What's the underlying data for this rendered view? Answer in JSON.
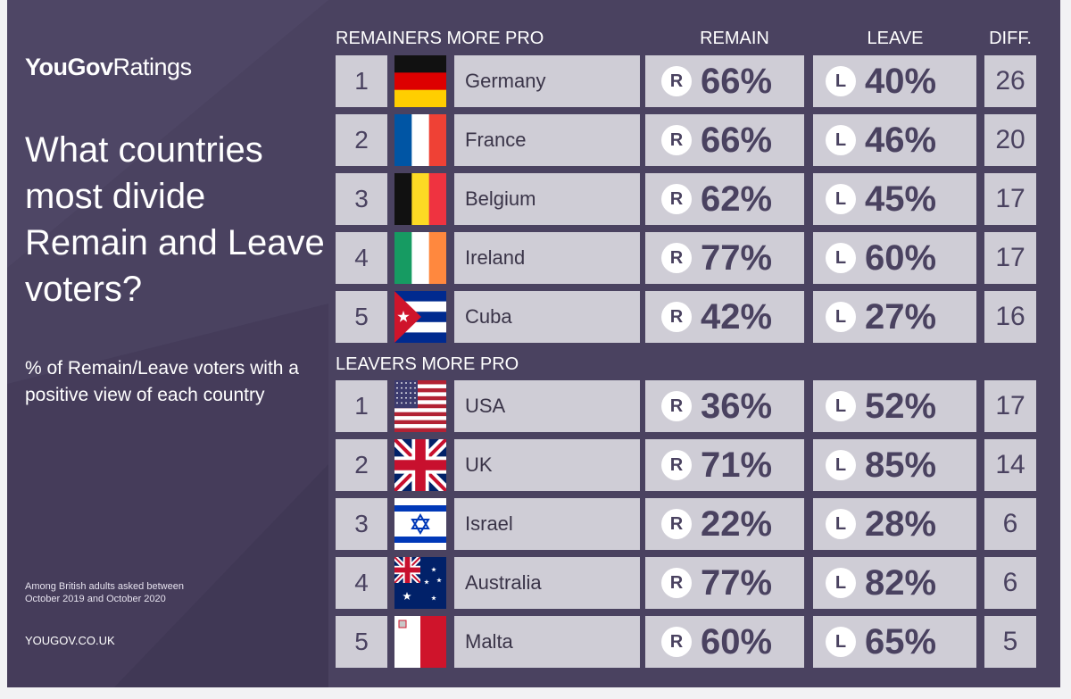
{
  "brand": {
    "bold": "YouGov",
    "light": "Ratings"
  },
  "title": "What countries most divide Remain and Leave voters?",
  "subtitle": "% of Remain/Leave voters with a positive view of each country",
  "note": "Among British adults asked between October 2019 and October 2020",
  "url": "YOUGOV.CO.UK",
  "colors": {
    "background": "#4a4260",
    "cell": "#cfcdd6",
    "text": "#4a4260"
  },
  "chart_data": {
    "type": "table",
    "columns": [
      "REMAIN",
      "LEAVE",
      "DIFF."
    ],
    "badges": {
      "remain": "R",
      "leave": "L"
    },
    "sections": [
      {
        "heading": "REMAINERS MORE PRO",
        "rows": [
          {
            "rank": "1",
            "country": "Germany",
            "flag": "germany-flag-icon",
            "remain": "66%",
            "leave": "40%",
            "diff": "26"
          },
          {
            "rank": "2",
            "country": "France",
            "flag": "france-flag-icon",
            "remain": "66%",
            "leave": "46%",
            "diff": "20"
          },
          {
            "rank": "3",
            "country": "Belgium",
            "flag": "belgium-flag-icon",
            "remain": "62%",
            "leave": "45%",
            "diff": "17"
          },
          {
            "rank": "4",
            "country": "Ireland",
            "flag": "ireland-flag-icon",
            "remain": "77%",
            "leave": "60%",
            "diff": "17"
          },
          {
            "rank": "5",
            "country": "Cuba",
            "flag": "cuba-flag-icon",
            "remain": "42%",
            "leave": "27%",
            "diff": "16"
          }
        ]
      },
      {
        "heading": "LEAVERS MORE PRO",
        "rows": [
          {
            "rank": "1",
            "country": "USA",
            "flag": "usa-flag-icon",
            "remain": "36%",
            "leave": "52%",
            "diff": "17"
          },
          {
            "rank": "2",
            "country": "UK",
            "flag": "uk-flag-icon",
            "remain": "71%",
            "leave": "85%",
            "diff": "14"
          },
          {
            "rank": "3",
            "country": "Israel",
            "flag": "israel-flag-icon",
            "remain": "22%",
            "leave": "28%",
            "diff": "6"
          },
          {
            "rank": "4",
            "country": "Australia",
            "flag": "australia-flag-icon",
            "remain": "77%",
            "leave": "82%",
            "diff": "6"
          },
          {
            "rank": "5",
            "country": "Malta",
            "flag": "malta-flag-icon",
            "remain": "60%",
            "leave": "65%",
            "diff": "5"
          }
        ]
      }
    ]
  }
}
